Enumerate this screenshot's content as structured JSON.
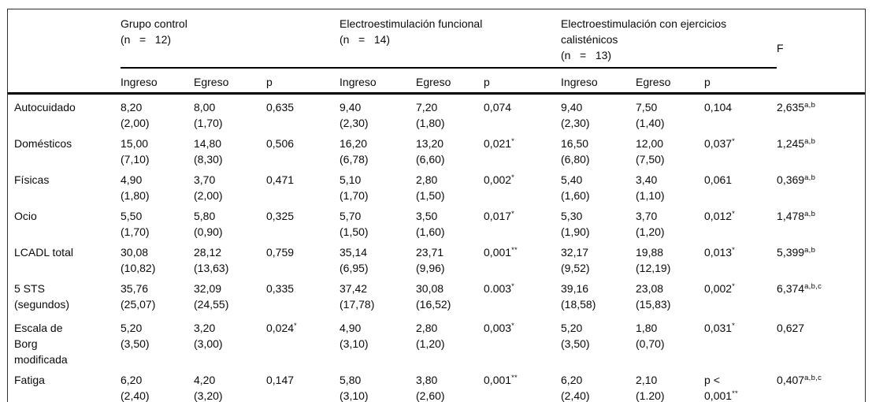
{
  "table": {
    "f_header": "F",
    "group_headers": [
      {
        "name": "grupo-control",
        "lines": [
          "Grupo control",
          "(n = 12)"
        ]
      },
      {
        "name": "electroestimulacion-funcional",
        "lines": [
          "Electroestimulación funcional",
          "(n = 14)"
        ]
      },
      {
        "name": "electroestimulacion-con-ejercicios-calistenicos",
        "lines": [
          "Electroestimulación con ejercicios",
          "calisténicos",
          "(n = 13)"
        ]
      }
    ],
    "subheaders": [
      "Ingreso",
      "Egreso",
      "p",
      "Ingreso",
      "Egreso",
      "p",
      "Ingreso",
      "Egreso",
      "p"
    ],
    "rows": [
      {
        "label_lines": [
          "Autocuidado"
        ],
        "cells": [
          {
            "l1": "8,20",
            "l2": "(2,00)"
          },
          {
            "l1": "8,00",
            "l2": "(1,70)"
          },
          {
            "l1": "0,635"
          },
          {
            "l1": "9,40",
            "l2": "(2,30)"
          },
          {
            "l1": "7,20",
            "l2": "(1,80)"
          },
          {
            "l1": "0,074"
          },
          {
            "l1": "9,40",
            "l2": "(2,30)"
          },
          {
            "l1": "7,50",
            "l2": "(1,40)"
          },
          {
            "l1": "0,104"
          },
          {
            "l1": "2,635",
            "l1s": "a,b"
          }
        ]
      },
      {
        "label_lines": [
          "Domésticos"
        ],
        "cells": [
          {
            "l1": "15,00",
            "l2": "(7,10)"
          },
          {
            "l1": "14,80",
            "l2": "(8,30)"
          },
          {
            "l1": "0,506"
          },
          {
            "l1": "16,20",
            "l2": "(6,78)"
          },
          {
            "l1": "13,20",
            "l2": "(6,60)"
          },
          {
            "l1": "0,021",
            "l1s": "*"
          },
          {
            "l1": "16,50",
            "l2": "(6,80)"
          },
          {
            "l1": "12,00",
            "l2": "(7,50)"
          },
          {
            "l1": "0,037",
            "l1s": "*"
          },
          {
            "l1": "1,245",
            "l1s": "a,b"
          }
        ]
      },
      {
        "label_lines": [
          "Físicas"
        ],
        "cells": [
          {
            "l1": "4,90",
            "l2": "(1,80)"
          },
          {
            "l1": "3,70",
            "l2": "(2,00)"
          },
          {
            "l1": "0,471"
          },
          {
            "l1": "5,10",
            "l2": "(1,70)"
          },
          {
            "l1": "2,80",
            "l2": "(1,50)"
          },
          {
            "l1": "0,002",
            "l1s": "*"
          },
          {
            "l1": "5,40",
            "l2": "(1,60)"
          },
          {
            "l1": "3,40",
            "l2": "(1,10)"
          },
          {
            "l1": "0,061"
          },
          {
            "l1": "0,369",
            "l1s": "a,b"
          }
        ]
      },
      {
        "label_lines": [
          "Ocio"
        ],
        "cells": [
          {
            "l1": "5,50",
            "l2": "(1,70)"
          },
          {
            "l1": "5,80",
            "l2": "(0,90)"
          },
          {
            "l1": "0,325"
          },
          {
            "l1": "5,70",
            "l2": "(1,50)"
          },
          {
            "l1": "3,50",
            "l2": "(1,60)"
          },
          {
            "l1": "0,017",
            "l1s": "*"
          },
          {
            "l1": "5,30",
            "l2": "(1,90)"
          },
          {
            "l1": "3,70",
            "l2": "(1,20)"
          },
          {
            "l1": "0,012",
            "l1s": "*"
          },
          {
            "l1": "1,478",
            "l1s": "a,b"
          }
        ]
      },
      {
        "label_lines": [
          "LCADL total"
        ],
        "cells": [
          {
            "l1": "30,08",
            "l2": "(10,82)"
          },
          {
            "l1": "28,12",
            "l2": "(13,63)"
          },
          {
            "l1": "0,759"
          },
          {
            "l1": "35,14",
            "l2": "(6,95)"
          },
          {
            "l1": "23,71",
            "l2": "(9,96)"
          },
          {
            "l1": "0,001",
            "l1s": "**"
          },
          {
            "l1": "32,17",
            "l2": "(9,52)"
          },
          {
            "l1": "19,88",
            "l2": "(12,19)"
          },
          {
            "l1": "0,013",
            "l1s": "*"
          },
          {
            "l1": "5,399",
            "l1s": "a,b"
          }
        ]
      },
      {
        "label_lines": [
          "5 STS",
          "(segundos)"
        ],
        "cells": [
          {
            "l1": "35,76",
            "l2": "(25,07)"
          },
          {
            "l1": "32,09",
            "l2": "(24,55)"
          },
          {
            "l1": "0,335"
          },
          {
            "l1": "37,42",
            "l2": "(17,78)"
          },
          {
            "l1": "30,08",
            "l2": "(16,52)"
          },
          {
            "l1": "0.003",
            "l1s": "*"
          },
          {
            "l1": "39,16",
            "l2": "(18,58)"
          },
          {
            "l1": "23,08",
            "l2": "(15,83)"
          },
          {
            "l1": "0,002",
            "l1s": "*"
          },
          {
            "l1": "6,374",
            "l1s": "a,b,c"
          }
        ]
      },
      {
        "label_lines": [
          "Escala de",
          "Borg",
          "modificada"
        ],
        "cells": [
          {
            "l1": "5,20",
            "l2": "(3,50)"
          },
          {
            "l1": "3,20",
            "l2": "(3,00)"
          },
          {
            "l1": "0,024",
            "l1s": "*"
          },
          {
            "l1": "4,90",
            "l2": "(3,10)"
          },
          {
            "l1": "2,80",
            "l2": "(1,20)"
          },
          {
            "l1": "0,003",
            "l1s": "*"
          },
          {
            "l1": "5,20",
            "l2": "(3,50)"
          },
          {
            "l1": "1,80",
            "l2": "(0,70)"
          },
          {
            "l1": "0,031",
            "l1s": "*"
          },
          {
            "l1": "0,627"
          }
        ]
      },
      {
        "label_lines": [
          "Fatiga"
        ],
        "cells": [
          {
            "l1": "6,20",
            "l2": "(2,40)"
          },
          {
            "l1": "4,20",
            "l2": "(3,20)"
          },
          {
            "l1": "0,147"
          },
          {
            "l1": "5,80",
            "l2": "(3,10)"
          },
          {
            "l1": "3,80",
            "l2": "(2,60)"
          },
          {
            "l1": "0,001",
            "l1s": "**"
          },
          {
            "l1": "6,20",
            "l2": "(2,40)"
          },
          {
            "l1": "2,10",
            "l2": "(1.20)"
          },
          {
            "l1": "p <",
            "l2": "0,001",
            "l2s": "**"
          },
          {
            "l1": "0,407",
            "l1s": "a,b,c"
          }
        ]
      }
    ]
  }
}
